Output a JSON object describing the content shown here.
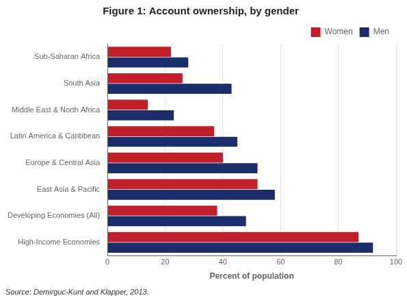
{
  "chart_data": {
    "type": "bar",
    "orientation": "horizontal",
    "title": "Figure 1: Account ownership, by gender",
    "categories": [
      "Sub-Saharan Africa",
      "South Asia",
      "Middle East & North Africa",
      "Latin America & Caribbean",
      "Europe & Central Asia",
      "East Asia & Pacific",
      "Developing Economies (All)",
      "High-Income Economies"
    ],
    "series": [
      {
        "name": "Women",
        "color": "#C0202A",
        "values": [
          22,
          26,
          14,
          37,
          40,
          52,
          38,
          87
        ]
      },
      {
        "name": "Men",
        "color": "#1C2D6B",
        "values": [
          28,
          43,
          23,
          45,
          52,
          58,
          48,
          92
        ]
      }
    ],
    "xlabel": "Percent of population",
    "xlim": [
      0,
      100
    ],
    "xticks": [
      0,
      20,
      40,
      60,
      80,
      100
    ],
    "grid": true,
    "legend": "upper right",
    "annotation": "Source: Demirguc-Kunt and Klapper, 2013."
  }
}
